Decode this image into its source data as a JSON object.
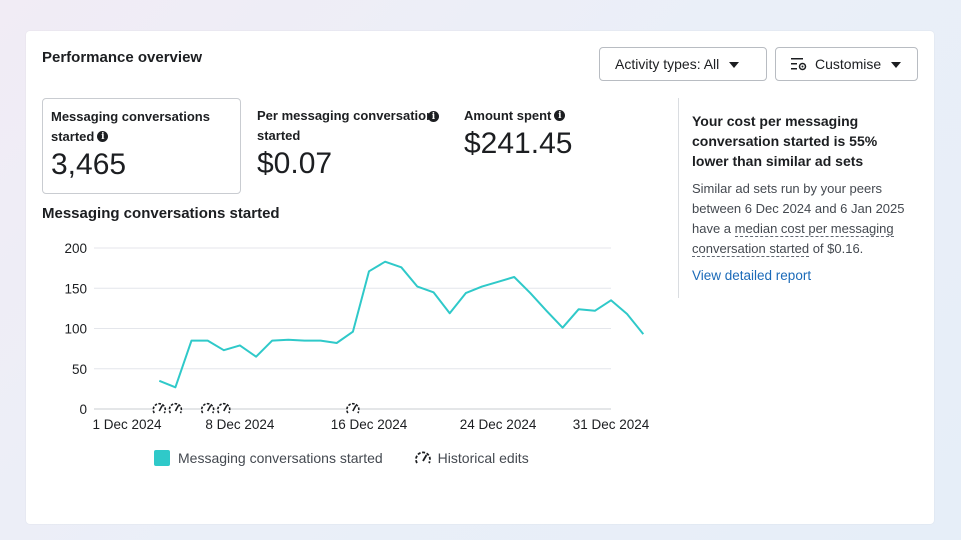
{
  "header": {
    "title": "Performance overview",
    "activity_button": "Activity types: All",
    "customise_button": "Customise"
  },
  "metrics": [
    {
      "label": "Messaging conversations started",
      "value": "3,465"
    },
    {
      "label": "Per messaging conversation started",
      "value": "$0.07"
    },
    {
      "label": "Amount spent",
      "value": "$241.45"
    }
  ],
  "insight": {
    "headline": "Your cost per messaging conversation started is 55% lower than similar ad sets",
    "body_prefix": "Similar ad sets run by your peers between 6 Dec 2024 and 6 Jan 2025 have a ",
    "body_link": "median cost per messaging conversation started",
    "body_suffix": " of $0.16.",
    "report_link": "View detailed report"
  },
  "legend": {
    "series": "Messaging conversations started",
    "edits": "Historical edits"
  },
  "colors": {
    "series": "#2fc9c9",
    "link": "#1b6ab8"
  },
  "chart_data": {
    "type": "line",
    "title": "Messaging conversations started",
    "ylim": [
      0,
      200
    ],
    "yticks": [
      0,
      50,
      100,
      150,
      200
    ],
    "x_domain": [
      "2024-12-01",
      "2024-12-31"
    ],
    "xtick_labels": [
      {
        "date": "2024-12-01",
        "label": "1 Dec 2024"
      },
      {
        "date": "2024-12-08",
        "label": "8 Dec 2024"
      },
      {
        "date": "2024-12-16",
        "label": "16 Dec 2024"
      },
      {
        "date": "2024-12-24",
        "label": "24 Dec 2024"
      },
      {
        "date": "2024-12-31",
        "label": "31 Dec 2024"
      }
    ],
    "grid": true,
    "series": [
      {
        "name": "Messaging conversations started",
        "color": "#2fc9c9",
        "points": [
          [
            "2024-12-03",
            35
          ],
          [
            "2024-12-04",
            27
          ],
          [
            "2024-12-05",
            85
          ],
          [
            "2024-12-06",
            85
          ],
          [
            "2024-12-07",
            73
          ],
          [
            "2024-12-08",
            79
          ],
          [
            "2024-12-09",
            65
          ],
          [
            "2024-12-10",
            85
          ],
          [
            "2024-12-11",
            86
          ],
          [
            "2024-12-12",
            85
          ],
          [
            "2024-12-13",
            85
          ],
          [
            "2024-12-14",
            82
          ],
          [
            "2024-12-15",
            96
          ],
          [
            "2024-12-16",
            171
          ],
          [
            "2024-12-17",
            183
          ],
          [
            "2024-12-18",
            176
          ],
          [
            "2024-12-19",
            152
          ],
          [
            "2024-12-20",
            145
          ],
          [
            "2024-12-21",
            119
          ],
          [
            "2024-12-22",
            144
          ],
          [
            "2024-12-23",
            152
          ],
          [
            "2024-12-24",
            158
          ],
          [
            "2024-12-25",
            164
          ],
          [
            "2024-12-26",
            144
          ],
          [
            "2024-12-27",
            122
          ],
          [
            "2024-12-28",
            101
          ],
          [
            "2024-12-29",
            124
          ],
          [
            "2024-12-30",
            122
          ],
          [
            "2024-12-31",
            135
          ],
          [
            "2025-01-01",
            118
          ],
          [
            "2025-01-02",
            93
          ]
        ]
      }
    ],
    "historical_edits": [
      "2024-12-03",
      "2024-12-04",
      "2024-12-06",
      "2024-12-07",
      "2024-12-15"
    ]
  }
}
